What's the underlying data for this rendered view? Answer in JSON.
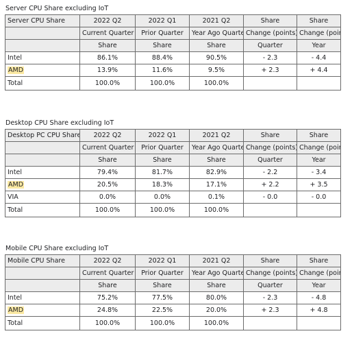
{
  "tables": [
    {
      "title": "Server CPU Share excluding IoT",
      "corner": "Server CPU Share",
      "head1": [
        "2022 Q2",
        "2022 Q1",
        "2021 Q2",
        "Share",
        "Share"
      ],
      "head2": [
        "Current Quarter",
        "Prior Quarter",
        "Year Ago Quarter",
        "Change (points)",
        "Change (points)"
      ],
      "head3": [
        "Share",
        "Share",
        "Share",
        "Quarter",
        "Year"
      ],
      "rows": [
        {
          "name": "Intel",
          "values": [
            "86.1%",
            "88.4%",
            "90.5%",
            "- 2.3",
            "- 4.4"
          ]
        },
        {
          "name": "AMD",
          "values": [
            "13.9%",
            "11.6%",
            "9.5%",
            "+ 2.3",
            "+ 4.4"
          ]
        }
      ],
      "total": {
        "name": "Total",
        "values": [
          "100.0%",
          "100.0%",
          "100.0%",
          "",
          ""
        ]
      }
    },
    {
      "title": "Desktop CPU Share excluding IoT",
      "corner": "Desktop PC CPU Share",
      "head1": [
        "2022 Q2",
        "2022 Q1",
        "2021 Q2",
        "Share",
        "Share"
      ],
      "head2": [
        "Current Quarter",
        "Prior Quarter",
        "Year Ago Quarter",
        "Change (points)",
        "Change (points)"
      ],
      "head3": [
        "Share",
        "Share",
        "Share",
        "Quarter",
        "Year"
      ],
      "rows": [
        {
          "name": "Intel",
          "values": [
            "79.4%",
            "81.7%",
            "82.9%",
            "- 2.2",
            "- 3.4"
          ]
        },
        {
          "name": "AMD",
          "values": [
            "20.5%",
            "18.3%",
            "17.1%",
            "+ 2.2",
            "+ 3.5"
          ]
        },
        {
          "name": "VIA",
          "values": [
            "0.0%",
            "0.0%",
            "0.1%",
            "- 0.0",
            "- 0.0"
          ]
        }
      ],
      "total": {
        "name": "Total",
        "values": [
          "100.0%",
          "100.0%",
          "100.0%",
          "",
          ""
        ]
      }
    },
    {
      "title": "Mobile CPU Share excluding IoT",
      "corner": "Mobile CPU Share",
      "head1": [
        "2022 Q2",
        "2022 Q1",
        "2021 Q2",
        "Share",
        "Share"
      ],
      "head2": [
        "Current Quarter",
        "Prior Quarter",
        "Year Ago Quarter",
        "Change (points)",
        "Change (points)"
      ],
      "head3": [
        "Share",
        "Share",
        "Share",
        "Quarter",
        "Year"
      ],
      "rows": [
        {
          "name": "Intel",
          "values": [
            "75.2%",
            "77.5%",
            "80.0%",
            "- 2.3",
            "- 4.8"
          ]
        },
        {
          "name": "AMD",
          "values": [
            "24.8%",
            "22.5%",
            "20.0%",
            "+ 2.3",
            "+ 4.8"
          ]
        }
      ],
      "total": {
        "name": "Total",
        "values": [
          "100.0%",
          "100.0%",
          "100.0%",
          "",
          ""
        ]
      }
    }
  ],
  "colors": {
    "header_gray": "#ececec",
    "amd_highlight": "#fbe9a3",
    "border": "#6b6b6b"
  }
}
